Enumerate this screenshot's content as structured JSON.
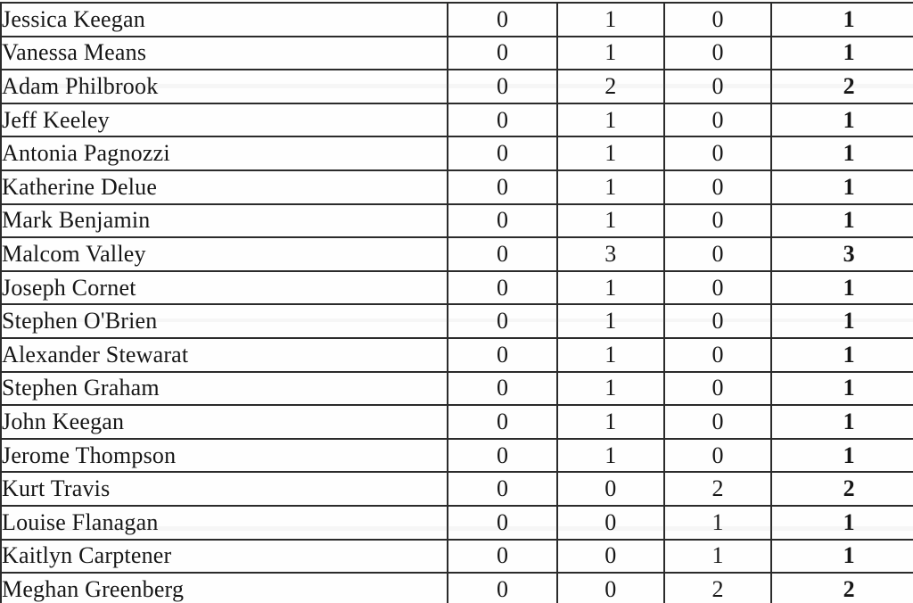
{
  "table": {
    "rows": [
      {
        "name": "Jessica Keegan",
        "c1": "0",
        "c2": "1",
        "c3": "0",
        "total": "1"
      },
      {
        "name": "Vanessa Means",
        "c1": "0",
        "c2": "1",
        "c3": "0",
        "total": "1"
      },
      {
        "name": "Adam Philbrook",
        "c1": "0",
        "c2": "2",
        "c3": "0",
        "total": "2"
      },
      {
        "name": "Jeff Keeley",
        "c1": "0",
        "c2": "1",
        "c3": "0",
        "total": "1"
      },
      {
        "name": "Antonia Pagnozzi",
        "c1": "0",
        "c2": "1",
        "c3": "0",
        "total": "1"
      },
      {
        "name": "Katherine Delue",
        "c1": "0",
        "c2": "1",
        "c3": "0",
        "total": "1"
      },
      {
        "name": "Mark Benjamin",
        "c1": "0",
        "c2": "1",
        "c3": "0",
        "total": "1"
      },
      {
        "name": "Malcom Valley",
        "c1": "0",
        "c2": "3",
        "c3": "0",
        "total": "3"
      },
      {
        "name": "Joseph Cornet",
        "c1": "0",
        "c2": "1",
        "c3": "0",
        "total": "1"
      },
      {
        "name": "Stephen O'Brien",
        "c1": "0",
        "c2": "1",
        "c3": "0",
        "total": "1"
      },
      {
        "name": "Alexander Stewarat",
        "c1": "0",
        "c2": "1",
        "c3": "0",
        "total": "1"
      },
      {
        "name": "Stephen Graham",
        "c1": "0",
        "c2": "1",
        "c3": "0",
        "total": "1"
      },
      {
        "name": "John Keegan",
        "c1": "0",
        "c2": "1",
        "c3": "0",
        "total": "1"
      },
      {
        "name": "Jerome Thompson",
        "c1": "0",
        "c2": "1",
        "c3": "0",
        "total": "1"
      },
      {
        "name": "Kurt Travis",
        "c1": "0",
        "c2": "0",
        "c3": "2",
        "total": "2"
      },
      {
        "name": "Louise Flanagan",
        "c1": "0",
        "c2": "0",
        "c3": "1",
        "total": "1"
      },
      {
        "name": "Kaitlyn Carptener",
        "c1": "0",
        "c2": "0",
        "c3": "1",
        "total": "1"
      },
      {
        "name": "Meghan Greenberg",
        "c1": "0",
        "c2": "0",
        "c3": "2",
        "total": "2"
      }
    ],
    "colors": {
      "text": "#161616",
      "border": "#2b2b2b",
      "background": "#fdfdfc"
    }
  }
}
